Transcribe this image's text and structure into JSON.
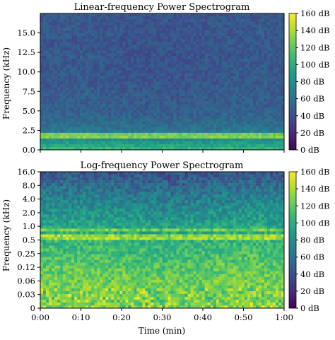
{
  "chart_data": [
    {
      "type": "heatmap",
      "title": "Linear-frequency Power Spectrogram",
      "xlabel": "",
      "ylabel": "Frequency (kHz)",
      "x_scale": "linear",
      "y_scale": "linear",
      "ylim": [
        0,
        17.5
      ],
      "y_ticks": [
        0.0,
        2.5,
        5.0,
        7.5,
        10.0,
        12.5,
        15.0
      ],
      "y_tick_labels": [
        "0.0",
        "2.5",
        "5.0",
        "7.5",
        "10.0",
        "12.5",
        "15.0"
      ],
      "x_ticks": [
        0,
        10,
        20,
        30,
        40,
        50,
        60
      ],
      "x_tick_labels": [],
      "xlim": [
        0,
        60
      ],
      "colormap": "viridis",
      "colorbar_range": [
        0,
        160
      ],
      "colorbar_ticks": [
        0,
        20,
        40,
        60,
        80,
        100,
        120,
        140,
        160
      ],
      "colorbar_labels": [
        "0 dB",
        "20 dB",
        "40 dB",
        "60 dB",
        "80 dB",
        "100 dB",
        "120 dB",
        "140 dB",
        "160 dB"
      ],
      "bands": [
        {
          "freq": 1.8,
          "level": "high"
        }
      ]
    },
    {
      "type": "heatmap",
      "title": "Log-frequency Power Spectrogram",
      "xlabel": "Time (min)",
      "ylabel": "Frequency (kHz)",
      "x_scale": "linear",
      "y_scale": "log",
      "y_ticks": [
        0,
        0.03,
        0.06,
        0.12,
        0.25,
        0.5,
        1.0,
        2.0,
        4.0,
        8.0,
        16.0
      ],
      "y_tick_labels": [
        "0",
        "0.03",
        "0.06",
        "0.12",
        "0.25",
        "0.5",
        "1.0",
        "2.0",
        "4.0",
        "8.0",
        "16.0"
      ],
      "x_ticks": [
        0,
        10,
        20,
        30,
        40,
        50,
        60
      ],
      "x_tick_labels": [
        "0:00",
        "0:10",
        "0:20",
        "0:30",
        "0:40",
        "0:50",
        "1:00"
      ],
      "xlim": [
        0,
        60
      ],
      "colormap": "viridis",
      "colorbar_range": [
        0,
        160
      ],
      "colorbar_ticks": [
        0,
        20,
        40,
        60,
        80,
        100,
        120,
        140,
        160
      ],
      "colorbar_labels": [
        "0 dB",
        "20 dB",
        "40 dB",
        "60 dB",
        "80 dB",
        "100 dB",
        "120 dB",
        "140 dB",
        "160 dB"
      ],
      "bands": [
        {
          "freq": 1.8,
          "level": "high"
        },
        {
          "freq": 0.8,
          "level": "high"
        }
      ]
    }
  ],
  "colors": {
    "viridis": [
      "#440154",
      "#482878",
      "#3e4989",
      "#31688e",
      "#26828e",
      "#1f9e89",
      "#35b779",
      "#6ece58",
      "#b5de2b",
      "#fde725"
    ]
  }
}
